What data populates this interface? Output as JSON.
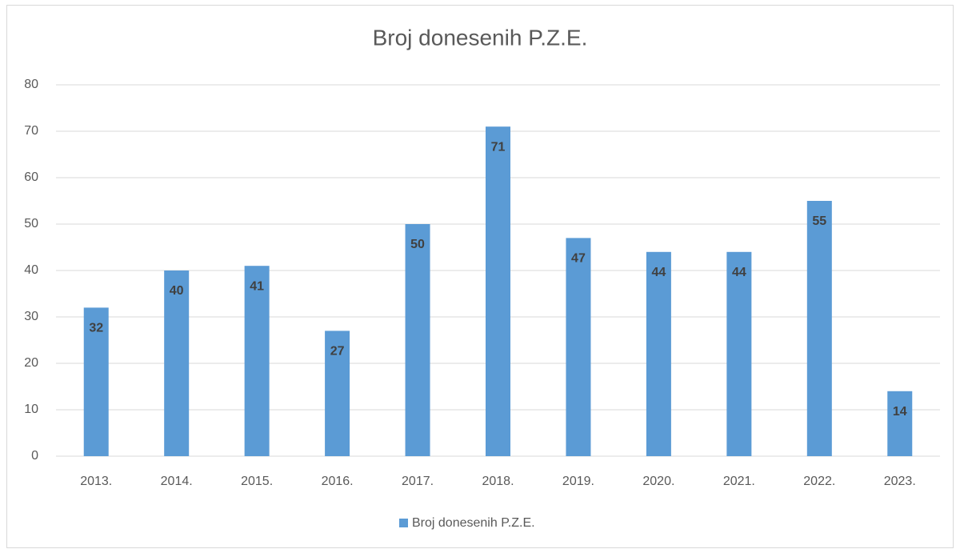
{
  "chart_data": {
    "type": "bar",
    "title": "Broj donesenih P.Z.E.",
    "categories": [
      "2013.",
      "2014.",
      "2015.",
      "2016.",
      "2017.",
      "2018.",
      "2019.",
      "2020.",
      "2021.",
      "2022.",
      "2023."
    ],
    "series": [
      {
        "name": "Broj donesenih P.Z.E.",
        "color": "#5b9bd5",
        "values": [
          32,
          40,
          41,
          27,
          50,
          71,
          47,
          44,
          44,
          55,
          14
        ]
      }
    ],
    "ylim": [
      0,
      80
    ],
    "yticks": [
      0,
      10,
      20,
      30,
      40,
      50,
      60,
      70,
      80
    ],
    "grid": true,
    "legend": "bottom"
  }
}
